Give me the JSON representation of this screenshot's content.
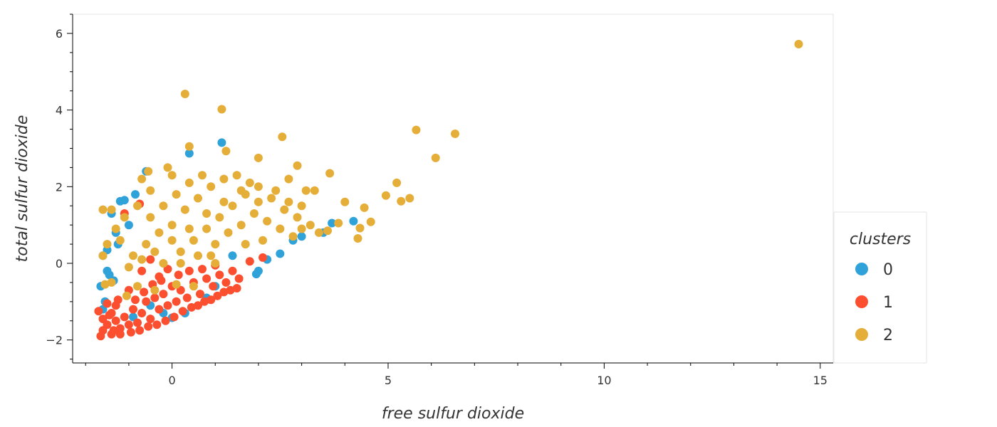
{
  "chart_data": {
    "type": "scatter",
    "title": "",
    "xlabel": "free sulfur dioxide",
    "ylabel": "total sulfur dioxide",
    "xlim": [
      -2.3,
      15.3
    ],
    "ylim": [
      -2.6,
      6.5
    ],
    "x_ticks": [
      0,
      5,
      10,
      15
    ],
    "y_ticks": [
      -2,
      0,
      2,
      4,
      6
    ],
    "x_tick_labels": [
      "0",
      "5",
      "10",
      "15"
    ],
    "y_tick_labels": [
      "−2",
      "0",
      "2",
      "4",
      "6"
    ],
    "grid": false,
    "legend_position": "right",
    "legend_title": "clusters",
    "series": [
      {
        "name": "0",
        "color": "#30a2da",
        "points": [
          [
            1.15,
            3.15
          ],
          [
            0.4,
            2.87
          ],
          [
            -1.1,
            1.65
          ],
          [
            -1.2,
            1.62
          ],
          [
            -0.85,
            1.8
          ],
          [
            -1.6,
            0.2
          ],
          [
            -1.5,
            0.35
          ],
          [
            -1.65,
            -0.6
          ],
          [
            -1.55,
            -1.0
          ],
          [
            -1.6,
            -1.2
          ],
          [
            -1.45,
            -0.3
          ],
          [
            -1.3,
            0.8
          ],
          [
            -1.25,
            0.5
          ],
          [
            -0.9,
            -1.4
          ],
          [
            -0.5,
            -1.1
          ],
          [
            0.0,
            -1.42
          ],
          [
            -0.2,
            -1.3
          ],
          [
            2.0,
            -0.2
          ],
          [
            1.95,
            -0.28
          ],
          [
            2.5,
            0.25
          ],
          [
            2.8,
            0.6
          ],
          [
            3.0,
            0.7
          ],
          [
            3.5,
            0.8
          ],
          [
            4.2,
            1.1
          ],
          [
            3.7,
            1.05
          ],
          [
            0.3,
            -1.3
          ],
          [
            0.8,
            -0.9
          ],
          [
            -1.35,
            -0.45
          ],
          [
            -1.5,
            -0.2
          ],
          [
            1.4,
            0.2
          ],
          [
            -1.0,
            1.0
          ],
          [
            -0.6,
            2.4
          ],
          [
            -1.4,
            1.3
          ],
          [
            1.0,
            -0.6
          ],
          [
            2.2,
            0.1
          ]
        ]
      },
      {
        "name": "1",
        "color": "#fc4f30",
        "points": [
          [
            -1.65,
            -1.9
          ],
          [
            -1.6,
            -1.75
          ],
          [
            -1.5,
            -1.6
          ],
          [
            -1.4,
            -1.85
          ],
          [
            -1.3,
            -1.5
          ],
          [
            -1.2,
            -1.7
          ],
          [
            -1.1,
            -1.4
          ],
          [
            -1.0,
            -1.6
          ],
          [
            -0.9,
            -1.2
          ],
          [
            -0.8,
            -1.55
          ],
          [
            -0.7,
            -1.3
          ],
          [
            -0.6,
            -1.0
          ],
          [
            -0.5,
            -1.45
          ],
          [
            -0.4,
            -0.9
          ],
          [
            -0.3,
            -1.2
          ],
          [
            -0.2,
            -0.8
          ],
          [
            -0.1,
            -1.1
          ],
          [
            0.0,
            -0.6
          ],
          [
            0.1,
            -1.0
          ],
          [
            0.2,
            -0.7
          ],
          [
            0.35,
            -0.9
          ],
          [
            0.5,
            -0.5
          ],
          [
            0.65,
            -0.8
          ],
          [
            0.8,
            -0.4
          ],
          [
            0.95,
            -0.6
          ],
          [
            1.1,
            -0.3
          ],
          [
            1.25,
            -0.5
          ],
          [
            1.4,
            -0.2
          ],
          [
            1.55,
            -0.4
          ],
          [
            1.8,
            0.05
          ],
          [
            2.1,
            0.15
          ],
          [
            -1.7,
            -1.25
          ],
          [
            -1.4,
            -1.3
          ],
          [
            -1.25,
            -0.95
          ],
          [
            -1.0,
            -0.7
          ],
          [
            -0.7,
            -0.2
          ],
          [
            -0.5,
            0.1
          ],
          [
            -0.3,
            -0.35
          ],
          [
            -0.1,
            -0.15
          ],
          [
            -1.5,
            -1.05
          ],
          [
            -1.35,
            -1.75
          ],
          [
            -1.2,
            -1.85
          ],
          [
            -0.95,
            -1.8
          ],
          [
            -0.75,
            -1.75
          ],
          [
            -0.55,
            -1.65
          ],
          [
            -0.35,
            -1.6
          ],
          [
            -0.15,
            -1.5
          ],
          [
            0.05,
            -1.4
          ],
          [
            0.25,
            -1.25
          ],
          [
            0.45,
            -1.15
          ],
          [
            0.6,
            -1.1
          ],
          [
            0.75,
            -1.0
          ],
          [
            0.9,
            -0.95
          ],
          [
            1.05,
            -0.85
          ],
          [
            1.2,
            -0.75
          ],
          [
            1.35,
            -0.7
          ],
          [
            1.5,
            -0.65
          ],
          [
            -0.75,
            1.55
          ],
          [
            -1.1,
            1.3
          ],
          [
            -1.3,
            -1.1
          ],
          [
            -0.85,
            -0.95
          ],
          [
            -0.65,
            -0.75
          ],
          [
            -0.45,
            -0.55
          ],
          [
            -0.25,
            -0.45
          ],
          [
            0.15,
            -0.3
          ],
          [
            0.4,
            -0.2
          ],
          [
            0.7,
            -0.15
          ],
          [
            1.0,
            -0.05
          ],
          [
            -1.6,
            -1.45
          ],
          [
            -1.45,
            -1.35
          ]
        ]
      },
      {
        "name": "2",
        "color": "#e5ae38",
        "points": [
          [
            14.5,
            5.72
          ],
          [
            0.3,
            4.42
          ],
          [
            1.15,
            4.02
          ],
          [
            5.65,
            3.48
          ],
          [
            6.55,
            3.38
          ],
          [
            2.55,
            3.3
          ],
          [
            0.4,
            3.05
          ],
          [
            1.25,
            2.93
          ],
          [
            6.1,
            2.75
          ],
          [
            2.0,
            2.75
          ],
          [
            3.65,
            2.35
          ],
          [
            5.2,
            2.1
          ],
          [
            4.95,
            1.77
          ],
          [
            5.5,
            1.7
          ],
          [
            5.3,
            1.62
          ],
          [
            4.0,
            1.6
          ],
          [
            4.45,
            1.45
          ],
          [
            3.1,
            1.9
          ],
          [
            4.6,
            1.08
          ],
          [
            4.35,
            0.92
          ],
          [
            4.3,
            0.65
          ],
          [
            3.85,
            1.05
          ],
          [
            3.6,
            0.85
          ],
          [
            2.9,
            2.55
          ],
          [
            2.7,
            2.2
          ],
          [
            -0.55,
            2.4
          ],
          [
            -0.1,
            2.5
          ],
          [
            0.0,
            2.3
          ],
          [
            -0.5,
            1.9
          ],
          [
            -0.8,
            1.5
          ],
          [
            -1.4,
            1.4
          ],
          [
            -1.1,
            1.2
          ],
          [
            -1.3,
            0.9
          ],
          [
            -1.5,
            0.5
          ],
          [
            -1.6,
            0.2
          ],
          [
            -1.4,
            -0.5
          ],
          [
            -1.05,
            -0.85
          ],
          [
            -0.8,
            -0.6
          ],
          [
            -0.4,
            -0.7
          ],
          [
            0.1,
            -0.55
          ],
          [
            0.5,
            -0.6
          ],
          [
            -0.2,
            0.0
          ],
          [
            0.2,
            0.3
          ],
          [
            0.5,
            0.6
          ],
          [
            0.8,
            0.9
          ],
          [
            1.1,
            1.2
          ],
          [
            1.4,
            1.5
          ],
          [
            1.7,
            1.8
          ],
          [
            2.0,
            2.0
          ],
          [
            2.3,
            1.7
          ],
          [
            2.6,
            1.4
          ],
          [
            2.9,
            1.2
          ],
          [
            3.2,
            1.0
          ],
          [
            3.4,
            0.8
          ],
          [
            0.0,
            1.0
          ],
          [
            0.3,
            1.4
          ],
          [
            0.6,
            1.7
          ],
          [
            0.9,
            2.0
          ],
          [
            1.2,
            2.2
          ],
          [
            1.5,
            2.3
          ],
          [
            1.8,
            2.1
          ],
          [
            -0.3,
            0.8
          ],
          [
            -0.6,
            0.5
          ],
          [
            -0.9,
            0.2
          ],
          [
            -0.5,
            1.2
          ],
          [
            -0.2,
            1.5
          ],
          [
            0.1,
            1.8
          ],
          [
            0.4,
            2.1
          ],
          [
            0.7,
            2.3
          ],
          [
            1.0,
            0.5
          ],
          [
            1.3,
            0.8
          ],
          [
            1.6,
            1.0
          ],
          [
            1.9,
            1.3
          ],
          [
            2.2,
            1.1
          ],
          [
            2.5,
            0.9
          ],
          [
            2.8,
            0.7
          ],
          [
            0.2,
            0.0
          ],
          [
            0.6,
            0.2
          ],
          [
            1.0,
            0.0
          ],
          [
            -1.0,
            -0.1
          ],
          [
            -0.7,
            0.1
          ],
          [
            0.0,
            0.6
          ],
          [
            0.4,
            0.9
          ],
          [
            0.8,
            1.3
          ],
          [
            1.2,
            1.6
          ],
          [
            1.6,
            1.9
          ],
          [
            2.0,
            1.6
          ],
          [
            2.4,
            1.9
          ],
          [
            2.7,
            1.6
          ],
          [
            3.0,
            1.5
          ],
          [
            -1.2,
            0.6
          ],
          [
            -0.4,
            0.3
          ],
          [
            0.9,
            0.2
          ],
          [
            1.7,
            0.5
          ],
          [
            2.1,
            0.6
          ],
          [
            -1.55,
            -0.55
          ],
          [
            -0.7,
            2.2
          ],
          [
            3.3,
            1.9
          ],
          [
            3.0,
            0.9
          ],
          [
            -1.6,
            1.4
          ]
        ]
      }
    ]
  }
}
